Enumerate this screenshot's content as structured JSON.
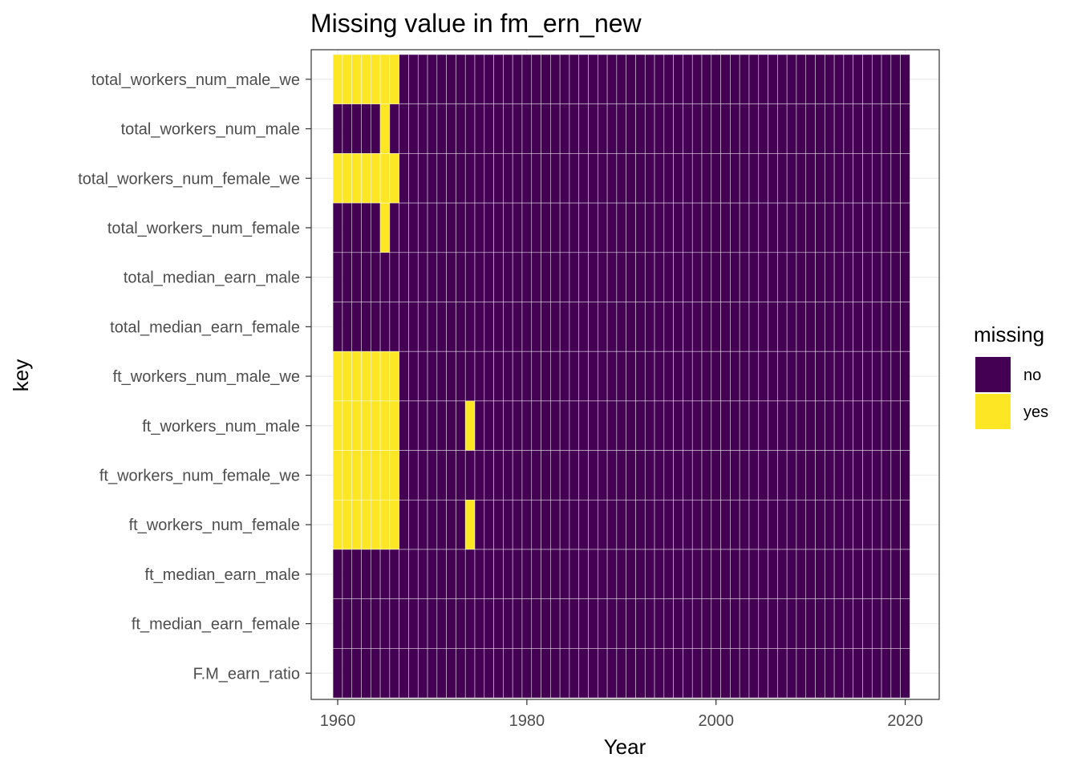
{
  "chart_data": {
    "type": "heatmap",
    "title": "Missing value in fm_ern_new",
    "xlabel": "Year",
    "ylabel": "key",
    "x_ticks": [
      1960,
      1980,
      2000,
      2020
    ],
    "xlim": [
      1957.2,
      2023.6
    ],
    "years": [
      1960,
      2020
    ],
    "keys": [
      "total_workers_num_male_we",
      "total_workers_num_male",
      "total_workers_num_female_we",
      "total_workers_num_female",
      "total_median_earn_male",
      "total_median_earn_female",
      "ft_workers_num_male_we",
      "ft_workers_num_male",
      "ft_workers_num_female_we",
      "ft_workers_num_female",
      "ft_median_earn_male",
      "ft_median_earn_female",
      "F.M_earn_ratio"
    ],
    "missing_yes_years": {
      "total_workers_num_male_we": [
        1960,
        1961,
        1962,
        1963,
        1964,
        1965,
        1966
      ],
      "total_workers_num_male": [
        1965
      ],
      "total_workers_num_female_we": [
        1960,
        1961,
        1962,
        1963,
        1964,
        1965,
        1966
      ],
      "total_workers_num_female": [
        1965
      ],
      "total_median_earn_male": [],
      "total_median_earn_female": [],
      "ft_workers_num_male_we": [
        1960,
        1961,
        1962,
        1963,
        1964,
        1965,
        1966
      ],
      "ft_workers_num_male": [
        1960,
        1961,
        1962,
        1963,
        1964,
        1965,
        1966,
        1974
      ],
      "ft_workers_num_female_we": [
        1960,
        1961,
        1962,
        1963,
        1964,
        1965,
        1966
      ],
      "ft_workers_num_female": [
        1960,
        1961,
        1962,
        1963,
        1964,
        1965,
        1966,
        1974
      ],
      "ft_median_earn_male": [],
      "ft_median_earn_female": [],
      "F.M_earn_ratio": []
    },
    "legend": {
      "title": "missing",
      "placement": "right",
      "entries": [
        {
          "label": "no",
          "color": "#440154"
        },
        {
          "label": "yes",
          "color": "#FDE725"
        }
      ]
    },
    "grid": true,
    "colors": {
      "no": "#440154",
      "yes": "#FDE725",
      "tile_border": "#ffffff",
      "panel_border": "#333333",
      "grid": "#ebebeb"
    }
  }
}
